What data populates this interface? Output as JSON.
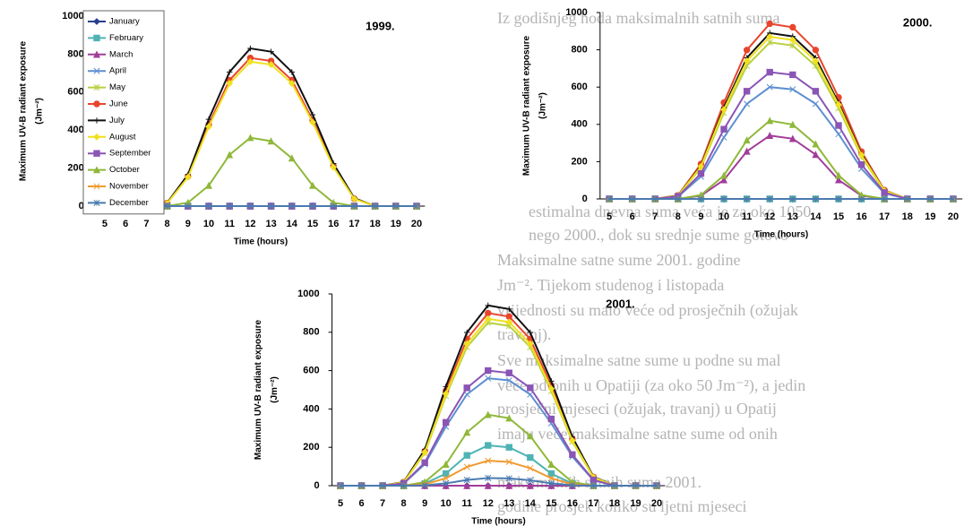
{
  "background_text": [
    "Iz godišnjeg hoda maksimalnih satnih suma",
    "estimalna dnevna suma veća je za oko 1050",
    "nego 2000., dok su srednje sume gotovo",
    "Maksimalne satne sume 2001. godine",
    "Jm⁻². Tijekom studenog i listopada",
    "vrijednosti su malo veće od prosječnih (ožujak",
    "travanj).",
    "Sve maksimalne satne sume u podne su mal",
    "veće od onih u Opatiji (za oko 50 Jm⁻²), a jedin",
    "prosječni mjeseci (ožujak, travanj) u Opatij",
    "imaju veće maksimalne satne sume od onih",
    "maksimalnih satnih suma 2001.",
    "godine prosjek koliko su ljetni mjeseci"
  ],
  "chart_data": [
    {
      "type": "line",
      "title": "1999.",
      "xlabel": "Time (hours)",
      "ylabel": "Maximum UV-B radiant exposure",
      "yunit": "(Jm⁻²)",
      "x": [
        5,
        6,
        7,
        8,
        9,
        10,
        11,
        12,
        13,
        14,
        15,
        16,
        17,
        18,
        19,
        20
      ],
      "xlim": [
        4.6,
        20.4
      ],
      "xticks": [
        5,
        6,
        7,
        8,
        9,
        10,
        11,
        12,
        13,
        14,
        15,
        16,
        17,
        18,
        19,
        20
      ],
      "ylim": [
        0,
        1000
      ],
      "yticks": [
        0,
        200,
        400,
        600,
        800,
        1000
      ],
      "legend": "upper left",
      "series": [
        {
          "name": "January",
          "color": "#2b3f8f",
          "values": [
            0,
            0,
            0,
            0,
            0,
            0,
            0,
            0,
            0,
            0,
            0,
            0,
            0,
            0,
            0,
            0
          ]
        },
        {
          "name": "February",
          "color": "#4fb3b3",
          "values": [
            0,
            0,
            0,
            0,
            0,
            0,
            0,
            0,
            0,
            0,
            0,
            0,
            0,
            0,
            0,
            0
          ]
        },
        {
          "name": "March",
          "color": "#a23c9a",
          "values": [
            0,
            0,
            0,
            0,
            0,
            0,
            0,
            0,
            0,
            0,
            0,
            0,
            0,
            0,
            0,
            0
          ]
        },
        {
          "name": "April",
          "color": "#5d8fd0",
          "values": [
            0,
            0,
            0,
            0,
            0,
            0,
            0,
            0,
            0,
            0,
            0,
            0,
            0,
            0,
            0,
            0
          ]
        },
        {
          "name": "May",
          "color": "#b8d040",
          "values": [
            0,
            0,
            0,
            0,
            0,
            0,
            0,
            0,
            0,
            0,
            0,
            0,
            0,
            0,
            0,
            0
          ]
        },
        {
          "name": "June",
          "color": "#e8452c",
          "values": [
            0,
            0,
            0,
            16,
            156,
            429,
            663,
            780,
            764,
            663,
            452,
            211,
            39,
            0,
            0,
            0
          ]
        },
        {
          "name": "July",
          "color": "#111111",
          "values": [
            0,
            0,
            0,
            17,
            166,
            457,
            706,
            830,
            813,
            706,
            481,
            224,
            42,
            0,
            0,
            0
          ]
        },
        {
          "name": "August",
          "color": "#f0e020",
          "values": [
            0,
            0,
            0,
            15,
            152,
            418,
            646,
            760,
            745,
            646,
            441,
            205,
            38,
            0,
            0,
            0
          ]
        },
        {
          "name": "September",
          "color": "#8a55b5",
          "values": [
            0,
            0,
            0,
            0,
            0,
            0,
            0,
            0,
            0,
            0,
            0,
            0,
            0,
            0,
            0,
            0
          ]
        },
        {
          "name": "October",
          "color": "#8fb83a",
          "values": [
            0,
            0,
            0,
            0,
            18,
            108,
            270,
            360,
            342,
            252,
            108,
            18,
            0,
            0,
            0,
            0
          ]
        },
        {
          "name": "November",
          "color": "#f09a30",
          "values": [
            0,
            0,
            0,
            0,
            0,
            0,
            0,
            0,
            0,
            0,
            0,
            0,
            0,
            0,
            0,
            0
          ]
        },
        {
          "name": "December",
          "color": "#4a7ab0",
          "values": [
            0,
            0,
            0,
            0,
            0,
            0,
            0,
            0,
            0,
            0,
            0,
            0,
            0,
            0,
            0,
            0
          ]
        }
      ]
    },
    {
      "type": "line",
      "title": "2000.",
      "xlabel": "Time (hours)",
      "ylabel": "Maximum UV-B radiant exposure",
      "yunit": "(Jm⁻²)",
      "x": [
        5,
        6,
        7,
        8,
        9,
        10,
        11,
        12,
        13,
        14,
        15,
        16,
        17,
        18,
        19,
        20
      ],
      "xlim": [
        4.6,
        20.4
      ],
      "xticks": [
        5,
        6,
        7,
        8,
        9,
        10,
        11,
        12,
        13,
        14,
        15,
        16,
        17,
        18,
        19,
        20
      ],
      "ylim": [
        0,
        1000
      ],
      "yticks": [
        0,
        200,
        400,
        600,
        800,
        1000
      ],
      "series": [
        {
          "color": "#2b3f8f",
          "values": [
            0,
            0,
            0,
            0,
            0,
            0,
            0,
            0,
            0,
            0,
            0,
            0,
            0,
            0,
            0,
            0
          ]
        },
        {
          "color": "#4fb3b3",
          "values": [
            0,
            0,
            0,
            0,
            0,
            0,
            0,
            0,
            0,
            0,
            0,
            0,
            0,
            0,
            0,
            0
          ]
        },
        {
          "color": "#a23c9a",
          "values": [
            0,
            0,
            0,
            0,
            17,
            102,
            255,
            340,
            323,
            238,
            102,
            17,
            0,
            0,
            0,
            0
          ]
        },
        {
          "color": "#5d8fd0",
          "values": [
            0,
            0,
            0,
            12,
            120,
            330,
            510,
            600,
            588,
            510,
            348,
            162,
            30,
            0,
            0,
            0
          ]
        },
        {
          "color": "#b8d040",
          "values": [
            0,
            0,
            0,
            17,
            168,
            462,
            714,
            840,
            823,
            714,
            487,
            227,
            42,
            0,
            0,
            0
          ]
        },
        {
          "color": "#e8452c",
          "values": [
            0,
            0,
            0,
            19,
            188,
            517,
            799,
            940,
            921,
            799,
            545,
            254,
            47,
            0,
            0,
            0
          ]
        },
        {
          "color": "#111111",
          "values": [
            0,
            0,
            0,
            18,
            178,
            490,
            757,
            890,
            872,
            757,
            516,
            240,
            45,
            0,
            0,
            0
          ]
        },
        {
          "color": "#f0e020",
          "values": [
            0,
            0,
            0,
            17,
            174,
            479,
            740,
            870,
            853,
            740,
            505,
            235,
            44,
            0,
            0,
            0
          ]
        },
        {
          "color": "#8a55b5",
          "values": [
            0,
            0,
            0,
            14,
            136,
            374,
            578,
            680,
            666,
            578,
            394,
            184,
            34,
            0,
            0,
            0
          ]
        },
        {
          "color": "#8fb83a",
          "values": [
            0,
            0,
            0,
            0,
            21,
            126,
            315,
            420,
            399,
            294,
            126,
            21,
            0,
            0,
            0,
            0
          ]
        },
        {
          "color": "#f09a30",
          "values": [
            0,
            0,
            0,
            0,
            0,
            0,
            0,
            0,
            0,
            0,
            0,
            0,
            0,
            0,
            0,
            0
          ]
        },
        {
          "color": "#4a7ab0",
          "values": [
            0,
            0,
            0,
            0,
            0,
            0,
            0,
            0,
            0,
            0,
            0,
            0,
            0,
            0,
            0,
            0
          ]
        }
      ]
    },
    {
      "type": "line",
      "title": "2001.",
      "xlabel": "Time (hours)",
      "ylabel": "Maximum UV-B radiant exposure",
      "yunit": "(Jm⁻²)",
      "x": [
        5,
        6,
        7,
        8,
        9,
        10,
        11,
        12,
        13,
        14,
        15,
        16,
        17,
        18,
        19,
        20
      ],
      "xlim": [
        4.6,
        20.4
      ],
      "xticks": [
        5,
        6,
        7,
        8,
        9,
        10,
        11,
        12,
        13,
        14,
        15,
        16,
        17,
        18,
        19,
        20
      ],
      "ylim": [
        0,
        1000
      ],
      "yticks": [
        0,
        200,
        400,
        600,
        800,
        1000
      ],
      "series": [
        {
          "color": "#2b3f8f",
          "values": [
            0,
            0,
            0,
            0,
            0,
            0,
            0,
            0,
            0,
            0,
            0,
            0,
            0,
            0,
            0,
            0
          ]
        },
        {
          "color": "#4fb3b3",
          "values": [
            0,
            0,
            0,
            0,
            11,
            63,
            158,
            210,
            200,
            147,
            63,
            11,
            0,
            0,
            0,
            0
          ]
        },
        {
          "color": "#a23c9a",
          "values": [
            0,
            0,
            0,
            0,
            0,
            0,
            0,
            0,
            0,
            0,
            0,
            0,
            0,
            0,
            0,
            0
          ]
        },
        {
          "color": "#5d8fd0",
          "values": [
            0,
            0,
            0,
            11,
            112,
            308,
            476,
            560,
            549,
            476,
            325,
            151,
            28,
            0,
            0,
            0
          ]
        },
        {
          "color": "#b8d040",
          "values": [
            0,
            0,
            0,
            17,
            170,
            468,
            723,
            850,
            833,
            723,
            493,
            230,
            43,
            0,
            0,
            0
          ]
        },
        {
          "color": "#e8452c",
          "values": [
            0,
            0,
            0,
            18,
            180,
            495,
            765,
            900,
            882,
            765,
            522,
            243,
            45,
            0,
            0,
            0
          ]
        },
        {
          "color": "#111111",
          "values": [
            0,
            0,
            0,
            19,
            188,
            517,
            799,
            940,
            921,
            799,
            545,
            254,
            47,
            0,
            0,
            0
          ]
        },
        {
          "color": "#f0e020",
          "values": [
            0,
            0,
            0,
            17,
            174,
            479,
            740,
            870,
            853,
            740,
            505,
            235,
            44,
            0,
            0,
            0
          ]
        },
        {
          "color": "#8a55b5",
          "values": [
            0,
            0,
            0,
            12,
            120,
            330,
            510,
            600,
            588,
            510,
            348,
            162,
            30,
            0,
            0,
            0
          ]
        },
        {
          "color": "#8fb83a",
          "values": [
            0,
            0,
            0,
            0,
            19,
            111,
            278,
            370,
            352,
            259,
            111,
            19,
            0,
            0,
            0,
            0
          ]
        },
        {
          "color": "#f09a30",
          "values": [
            0,
            0,
            0,
            0,
            7,
            39,
            98,
            130,
            124,
            91,
            39,
            7,
            0,
            0,
            0,
            0
          ]
        },
        {
          "color": "#4a7ab0",
          "values": [
            0,
            0,
            0,
            0,
            2,
            12,
            30,
            40,
            38,
            28,
            12,
            2,
            0,
            0,
            0,
            0
          ]
        }
      ]
    }
  ]
}
